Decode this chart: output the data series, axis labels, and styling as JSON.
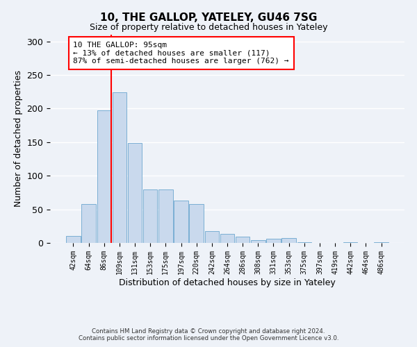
{
  "title": "10, THE GALLOP, YATELEY, GU46 7SG",
  "subtitle": "Size of property relative to detached houses in Yateley",
  "xlabel": "Distribution of detached houses by size in Yateley",
  "ylabel": "Number of detached properties",
  "bar_labels": [
    "42sqm",
    "64sqm",
    "86sqm",
    "109sqm",
    "131sqm",
    "153sqm",
    "175sqm",
    "197sqm",
    "220sqm",
    "242sqm",
    "264sqm",
    "286sqm",
    "308sqm",
    "331sqm",
    "353sqm",
    "375sqm",
    "397sqm",
    "419sqm",
    "442sqm",
    "464sqm",
    "486sqm"
  ],
  "bar_heights": [
    10,
    58,
    197,
    224,
    149,
    80,
    80,
    63,
    58,
    18,
    13,
    9,
    4,
    6,
    7,
    1,
    0,
    0,
    1,
    0,
    1
  ],
  "bar_color": "#c9d9ed",
  "bar_edge_color": "#7bafd4",
  "vline_color": "red",
  "annotation_text": "10 THE GALLOP: 95sqm\n← 13% of detached houses are smaller (117)\n87% of semi-detached houses are larger (762) →",
  "annotation_box_color": "white",
  "annotation_box_edge_color": "red",
  "ylim": [
    0,
    310
  ],
  "yticks": [
    0,
    50,
    100,
    150,
    200,
    250,
    300
  ],
  "footer_line1": "Contains HM Land Registry data © Crown copyright and database right 2024.",
  "footer_line2": "Contains public sector information licensed under the Open Government Licence v3.0.",
  "bg_color": "#eef2f8",
  "grid_color": "#ffffff"
}
